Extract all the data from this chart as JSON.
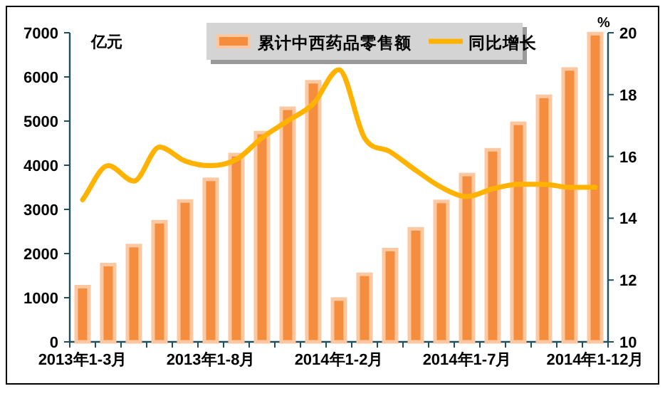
{
  "chart_data": {
    "type": "bar",
    "ylabel": "亿元",
    "y2label": "%",
    "categories": [
      "2013年1-3月",
      null,
      null,
      null,
      null,
      "2013年1-8月",
      null,
      null,
      null,
      null,
      "2014年1-2月",
      null,
      null,
      null,
      null,
      "2014年1-7月",
      null,
      null,
      null,
      null,
      "2014年1-12月"
    ],
    "series": [
      {
        "name": "累计中西药品零售额",
        "color": "#f58d3f",
        "values": [
          1250,
          1750,
          2180,
          2720,
          3190,
          3680,
          4240,
          4740,
          5290,
          5890,
          970,
          1530,
          2090,
          2560,
          3180,
          3790,
          4350,
          4950,
          5560,
          6180,
          6980
        ]
      },
      {
        "name": "同比增长",
        "type": "line",
        "axis": "y2",
        "color": "#ffb300",
        "values": [
          14.6,
          15.7,
          15.2,
          16.3,
          15.85,
          15.7,
          15.9,
          16.6,
          17.15,
          17.7,
          18.8,
          16.6,
          16.15,
          15.55,
          15.0,
          14.7,
          14.95,
          15.1,
          15.1,
          15.0,
          15.0
        ]
      }
    ],
    "ylim": [
      0,
      7000
    ],
    "yticks": [
      0,
      1000,
      2000,
      3000,
      4000,
      5000,
      6000,
      7000
    ],
    "y2lim": [
      10,
      20
    ],
    "y2ticks": [
      10,
      12,
      14,
      16,
      18,
      20
    ],
    "legend": "top",
    "grid": false,
    "marker": "none",
    "line_style": "solid"
  }
}
